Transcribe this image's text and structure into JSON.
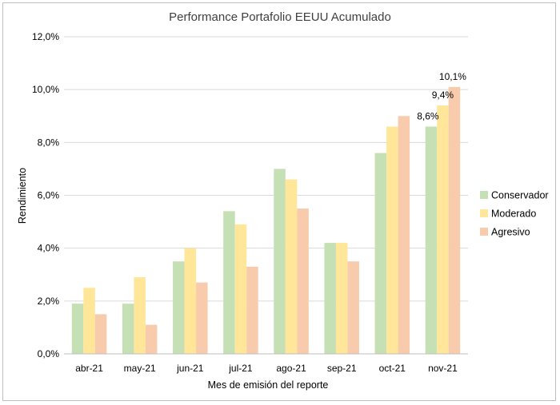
{
  "chart_data": {
    "type": "bar",
    "title": "Performance Portafolio EEUU Acumulado",
    "xlabel": "Mes de emisión del reporte",
    "ylabel": "Rendimiento",
    "categories": [
      "abr-21",
      "may-21",
      "jun-21",
      "jul-21",
      "ago-21",
      "sep-21",
      "oct-21",
      "nov-21"
    ],
    "series": [
      {
        "name": "Conservador",
        "color": "#c5e0b4",
        "values": [
          1.9,
          1.9,
          3.5,
          5.4,
          7.0,
          4.2,
          7.6,
          8.6
        ]
      },
      {
        "name": "Moderado",
        "color": "#ffe699",
        "values": [
          2.5,
          2.9,
          4.0,
          4.9,
          6.6,
          4.2,
          8.6,
          9.4
        ]
      },
      {
        "name": "Agresivo",
        "color": "#f8cbad",
        "values": [
          1.5,
          1.1,
          2.7,
          3.3,
          5.5,
          3.5,
          9.0,
          10.1
        ]
      }
    ],
    "ylim": [
      0,
      12
    ],
    "yticks": [
      "0,0%",
      "2,0%",
      "4,0%",
      "6,0%",
      "8,0%",
      "10,0%",
      "12,0%"
    ],
    "data_labels": [
      {
        "category": "nov-21",
        "series": "Conservador",
        "text": "8,6%"
      },
      {
        "category": "nov-21",
        "series": "Moderado",
        "text": "9,4%"
      },
      {
        "category": "nov-21",
        "series": "Agresivo",
        "text": "10,1%"
      }
    ],
    "grid": true,
    "legend_position": "right"
  }
}
